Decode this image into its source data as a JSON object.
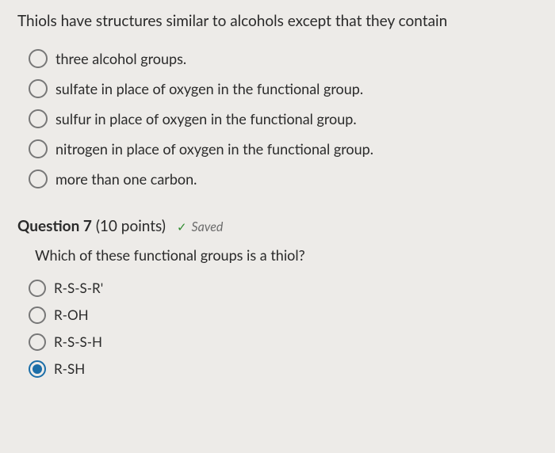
{
  "q1": {
    "stem": "Thiols have structures similar to alcohols except that they contain",
    "options": [
      {
        "label": "three alcohol groups.",
        "selected": false
      },
      {
        "label": "sulfate in place of oxygen in the functional group.",
        "selected": false
      },
      {
        "label": "sulfur in place of oxygen in the functional group.",
        "selected": false
      },
      {
        "label": "nitrogen in place of oxygen in the functional group.",
        "selected": false
      },
      {
        "label": "more than one carbon.",
        "selected": false
      }
    ]
  },
  "q2": {
    "heading_bold": "Question 7",
    "heading_points": "(10 points)",
    "saved_label": "Saved",
    "check_glyph": "✓",
    "stem": "Which of these functional groups is a thiol?",
    "options": [
      {
        "label": "R-S-S-R'",
        "selected": false
      },
      {
        "label": "R-OH",
        "selected": false
      },
      {
        "label": "R-S-S-H",
        "selected": false
      },
      {
        "label": "R-SH",
        "selected": true
      }
    ]
  },
  "colors": {
    "background": "#e8e6e3",
    "text": "#2a2a2a",
    "radio_border": "#777777",
    "radio_selected": "#1b6ea8",
    "saved_text": "#6c6c6c",
    "check": "#2e8b2e"
  }
}
